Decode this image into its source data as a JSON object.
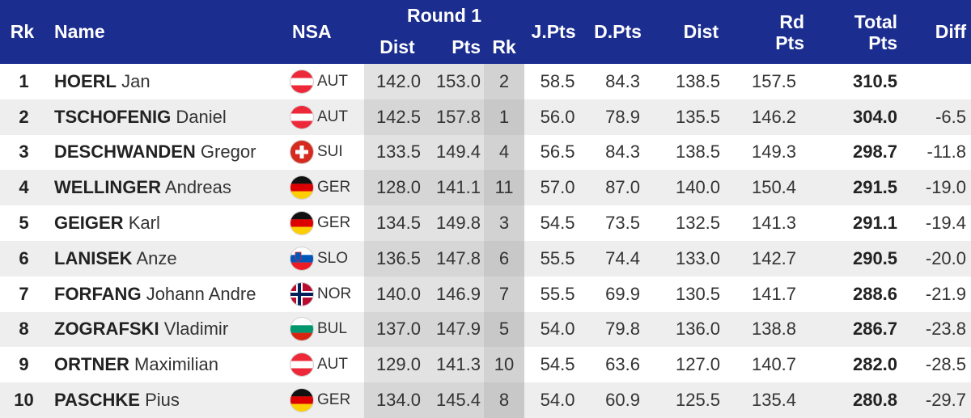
{
  "header": {
    "rk": "Rk",
    "name": "Name",
    "nsa": "NSA",
    "round": "Round 1",
    "dist": "Dist",
    "pts": "Pts",
    "round_rk": "Rk",
    "jpts": "J.Pts",
    "dpts": "D.Pts",
    "dist2": "Dist",
    "rd_pts_1": "Rd",
    "rd_pts_2": "Pts",
    "total_1": "Total",
    "total_2": "Pts",
    "diff": "Diff"
  },
  "rows": [
    {
      "rk": "1",
      "last": "HOERL",
      "first": "Jan",
      "flag": "aut-flag-icon",
      "nsa": "AUT",
      "dist": "142.0",
      "pts": "153.0",
      "rrk": "2",
      "jpts": "58.5",
      "dpts": "84.3",
      "dist2": "138.5",
      "rdpts": "157.5",
      "total": "310.5",
      "diff": ""
    },
    {
      "rk": "2",
      "last": "TSCHOFENIG",
      "first": "Daniel",
      "flag": "aut-flag-icon",
      "nsa": "AUT",
      "dist": "142.5",
      "pts": "157.8",
      "rrk": "1",
      "jpts": "56.0",
      "dpts": "78.9",
      "dist2": "135.5",
      "rdpts": "146.2",
      "total": "304.0",
      "diff": "-6.5"
    },
    {
      "rk": "3",
      "last": "DESCHWANDEN",
      "first": "Gregor",
      "flag": "sui-flag-icon",
      "nsa": "SUI",
      "dist": "133.5",
      "pts": "149.4",
      "rrk": "4",
      "jpts": "56.5",
      "dpts": "84.3",
      "dist2": "138.5",
      "rdpts": "149.3",
      "total": "298.7",
      "diff": "-11.8"
    },
    {
      "rk": "4",
      "last": "WELLINGER",
      "first": "Andreas",
      "flag": "ger-flag-icon",
      "nsa": "GER",
      "dist": "128.0",
      "pts": "141.1",
      "rrk": "11",
      "jpts": "57.0",
      "dpts": "87.0",
      "dist2": "140.0",
      "rdpts": "150.4",
      "total": "291.5",
      "diff": "-19.0"
    },
    {
      "rk": "5",
      "last": "GEIGER",
      "first": "Karl",
      "flag": "ger-flag-icon",
      "nsa": "GER",
      "dist": "134.5",
      "pts": "149.8",
      "rrk": "3",
      "jpts": "54.5",
      "dpts": "73.5",
      "dist2": "132.5",
      "rdpts": "141.3",
      "total": "291.1",
      "diff": "-19.4"
    },
    {
      "rk": "6",
      "last": "LANISEK",
      "first": "Anze",
      "flag": "slo-flag-icon",
      "nsa": "SLO",
      "dist": "136.5",
      "pts": "147.8",
      "rrk": "6",
      "jpts": "55.5",
      "dpts": "74.4",
      "dist2": "133.0",
      "rdpts": "142.7",
      "total": "290.5",
      "diff": "-20.0"
    },
    {
      "rk": "7",
      "last": "FORFANG",
      "first": "Johann Andre",
      "flag": "nor-flag-icon",
      "nsa": "NOR",
      "dist": "140.0",
      "pts": "146.9",
      "rrk": "7",
      "jpts": "55.5",
      "dpts": "69.9",
      "dist2": "130.5",
      "rdpts": "141.7",
      "total": "288.6",
      "diff": "-21.9"
    },
    {
      "rk": "8",
      "last": "ZOGRAFSKI",
      "first": "Vladimir",
      "flag": "bul-flag-icon",
      "nsa": "BUL",
      "dist": "137.0",
      "pts": "147.9",
      "rrk": "5",
      "jpts": "54.0",
      "dpts": "79.8",
      "dist2": "136.0",
      "rdpts": "138.8",
      "total": "286.7",
      "diff": "-23.8"
    },
    {
      "rk": "9",
      "last": "ORTNER",
      "first": "Maximilian",
      "flag": "aut-flag-icon",
      "nsa": "AUT",
      "dist": "129.0",
      "pts": "141.3",
      "rrk": "10",
      "jpts": "54.5",
      "dpts": "63.6",
      "dist2": "127.0",
      "rdpts": "140.7",
      "total": "282.0",
      "diff": "-28.5"
    },
    {
      "rk": "10",
      "last": "PASCHKE",
      "first": "Pius",
      "flag": "ger-flag-icon",
      "nsa": "GER",
      "dist": "134.0",
      "pts": "145.4",
      "rrk": "8",
      "jpts": "54.0",
      "dpts": "60.9",
      "dist2": "125.5",
      "rdpts": "135.4",
      "total": "280.8",
      "diff": "-29.7"
    }
  ],
  "colors": {
    "header_bg": "#1b2d8f",
    "header_text": "#ffffff",
    "round_shade": "#e2e2e2",
    "round_rk_shade": "#d2d2d2"
  }
}
